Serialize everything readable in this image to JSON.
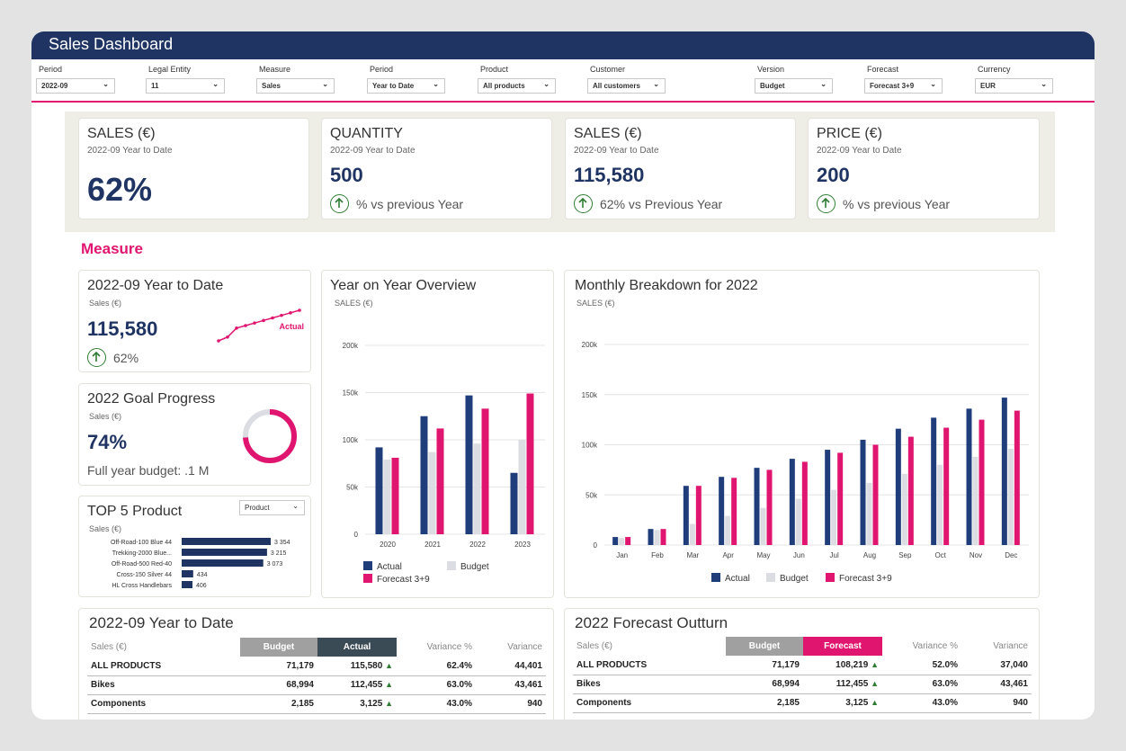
{
  "app": {
    "title": "Sales Dashboard"
  },
  "filters": [
    {
      "label": "Period",
      "value": "2022-09"
    },
    {
      "label": "Legal Entity",
      "value": "11"
    },
    {
      "label": "Measure",
      "value": "Sales"
    },
    {
      "label": "Period",
      "value": "Year to Date"
    },
    {
      "label": "Product",
      "value": "All products"
    },
    {
      "label": "Customer",
      "value": "All customers"
    },
    {
      "label": "Version",
      "value": "Budget"
    },
    {
      "label": "Forecast",
      "value": "Forecast 3+9"
    },
    {
      "label": "Currency",
      "value": "EUR"
    }
  ],
  "kpis": [
    {
      "title": "SALES (€)",
      "subtitle": "2022-09 Year to Date",
      "value": "62%",
      "delta": ""
    },
    {
      "title": "QUANTITY",
      "subtitle": "2022-09 Year to Date",
      "value": "500",
      "delta": "% vs previous Year"
    },
    {
      "title": "SALES (€)",
      "subtitle": "2022-09 Year to Date",
      "value": "115,580",
      "delta": "62% vs Previous Year"
    },
    {
      "title": "PRICE (€)",
      "subtitle": "2022-09 Year to Date",
      "value": "200",
      "delta": "% vs previous Year"
    }
  ],
  "measure_heading": "Measure",
  "ytd_card": {
    "title": "2022-09 Year to Date",
    "subtitle": "Sales (€)",
    "value": "115,580",
    "delta": "62%",
    "spark_label": "Actual",
    "spark_values": [
      52,
      55,
      62,
      64,
      66,
      68,
      70,
      72,
      74,
      76
    ]
  },
  "goal_card": {
    "title": "2022 Goal Progress",
    "subtitle": "Sales (€)",
    "value": "74%",
    "progress": 0.74,
    "footer": "Full year budget: .1 M"
  },
  "top5": {
    "title": "TOP 5 Product",
    "subtitle": "Sales (€)",
    "dropdown": "Product",
    "items": [
      {
        "name": "Off-Road-100 Blue 44",
        "label": "3 354",
        "value": 3354
      },
      {
        "name": "Trekking-2000 Blue...",
        "label": "3 215",
        "value": 3215
      },
      {
        "name": "Off-Road-500 Red-40",
        "label": "3 073",
        "value": 3073
      },
      {
        "name": "Cross-150 Silver 44",
        "label": "434",
        "value": 434
      },
      {
        "name": "HL Cross Handlebars",
        "label": "406",
        "value": 406
      }
    ]
  },
  "chart_data": [
    {
      "type": "bar",
      "title": "Year on Year Overview",
      "subtitle": "SALES (€)",
      "categories": [
        "2020",
        "2021",
        "2022",
        "2023"
      ],
      "yticks": [
        "0",
        "50k",
        "100k",
        "150k",
        "200k"
      ],
      "ylim": [
        0,
        200000
      ],
      "series": [
        {
          "name": "Actual",
          "color": "#1f3d7a",
          "values": [
            92000,
            125000,
            147000,
            65000
          ]
        },
        {
          "name": "Budget",
          "color": "#dcdde3",
          "values": [
            79000,
            87000,
            96000,
            100000
          ]
        },
        {
          "name": "Forecast 3+9",
          "color": "#e0156f",
          "values": [
            81000,
            112000,
            133000,
            149000
          ]
        }
      ],
      "legend_placement": "bottom-left"
    },
    {
      "type": "bar",
      "title": "Monthly Breakdown for 2022",
      "subtitle": "SALES (€)",
      "categories": [
        "Jan",
        "Feb",
        "Mar",
        "Apr",
        "May",
        "Jun",
        "Jul",
        "Aug",
        "Sep",
        "Oct",
        "Nov",
        "Dec"
      ],
      "yticks": [
        "0",
        "50k",
        "100k",
        "150k",
        "200k"
      ],
      "ylim": [
        0,
        200000
      ],
      "series": [
        {
          "name": "Actual",
          "color": "#1f3d7a",
          "values": [
            8000,
            16000,
            59000,
            68000,
            77000,
            86000,
            95000,
            105000,
            116000,
            127000,
            136000,
            147000
          ]
        },
        {
          "name": "Budget",
          "color": "#dcdde3",
          "values": [
            7000,
            15000,
            21000,
            29000,
            37000,
            46000,
            55000,
            62000,
            71000,
            80000,
            88000,
            96000
          ]
        },
        {
          "name": "Forecast 3+9",
          "color": "#e0156f",
          "values": [
            8000,
            16000,
            59000,
            67000,
            75000,
            83000,
            92000,
            100000,
            108000,
            117000,
            125000,
            134000
          ]
        }
      ],
      "legend_placement": "bottom-center"
    }
  ],
  "ytd_table": {
    "title": "2022-09 Year to Date",
    "headers": [
      "Sales (€)",
      "Budget",
      "Actual",
      "Variance %",
      "Variance"
    ],
    "rows": [
      {
        "label": "ALL PRODUCTS",
        "budget": "71,179",
        "actual": "115,580",
        "var_pct": "62.4%",
        "var": "44,401"
      },
      {
        "label": "Bikes",
        "budget": "68,994",
        "actual": "112,455",
        "var_pct": "63.0%",
        "var": "43,461"
      },
      {
        "label": "Components",
        "budget": "2,185",
        "actual": "3,125",
        "var_pct": "43.0%",
        "var": "940"
      }
    ]
  },
  "forecast_table": {
    "title": "2022 Forecast Outturn",
    "headers": [
      "Sales (€)",
      "Budget",
      "Forecast",
      "Variance %",
      "Variance"
    ],
    "rows": [
      {
        "label": "ALL PRODUCTS",
        "budget": "71,179",
        "actual": "108,219",
        "var_pct": "52.0%",
        "var": "37,040"
      },
      {
        "label": "Bikes",
        "budget": "68,994",
        "actual": "112,455",
        "var_pct": "63.0%",
        "var": "43,461"
      },
      {
        "label": "Components",
        "budget": "2,185",
        "actual": "3,125",
        "var_pct": "43.0%",
        "var": "940"
      }
    ]
  },
  "up_arrow": "▲",
  "colors": {
    "navy": "#1f3463",
    "pink": "#e0156f",
    "green": "#2e7d32",
    "budget_gray": "#a0a0a0",
    "actual_dark": "#3a4b55"
  }
}
